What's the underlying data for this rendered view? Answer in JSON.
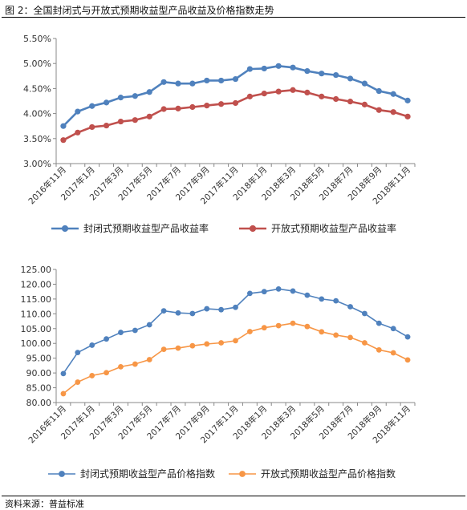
{
  "figure": {
    "title": "图 2：全国封闭式与开放式预期收益型产品收益及价格指数走势",
    "source": "资料来源：普益标准"
  },
  "chart_data": [
    {
      "type": "line",
      "categories": [
        "2016年11月",
        "2016年12月",
        "2017年1月",
        "2017年2月",
        "2017年3月",
        "2017年4月",
        "2017年5月",
        "2017年6月",
        "2017年7月",
        "2017年8月",
        "2017年9月",
        "2017年10月",
        "2017年11月",
        "2017年12月",
        "2018年1月",
        "2018年2月",
        "2018年3月",
        "2018年4月",
        "2018年5月",
        "2018年6月",
        "2018年7月",
        "2018年8月",
        "2018年9月",
        "2018年10月",
        "2018年11月"
      ],
      "x_tick_labels": [
        "2016年11月",
        "2017年1月",
        "2017年3月",
        "2017年5月",
        "2017年7月",
        "2017年9月",
        "2017年11月",
        "2018年1月",
        "2018年3月",
        "2018年5月",
        "2018年7月",
        "2018年9月",
        "2018年11月"
      ],
      "ylim": [
        3.0,
        5.5
      ],
      "yticks": [
        "3.00%",
        "3.50%",
        "4.00%",
        "4.50%",
        "5.00%",
        "5.50%"
      ],
      "grid": false,
      "legend": "bottom",
      "series": [
        {
          "name": "封闭式预期收益型产品收益率",
          "color": "#4f81bd",
          "values": [
            3.75,
            4.04,
            4.15,
            4.22,
            4.32,
            4.35,
            4.43,
            4.63,
            4.6,
            4.6,
            4.66,
            4.66,
            4.69,
            4.89,
            4.9,
            4.95,
            4.92,
            4.85,
            4.8,
            4.77,
            4.7,
            4.6,
            4.45,
            4.39,
            4.26
          ]
        },
        {
          "name": "开放式预期收益型产品收益率",
          "color": "#c0504d",
          "values": [
            3.47,
            3.62,
            3.73,
            3.76,
            3.84,
            3.87,
            3.94,
            4.09,
            4.1,
            4.13,
            4.16,
            4.19,
            4.21,
            4.34,
            4.4,
            4.44,
            4.47,
            4.42,
            4.34,
            4.29,
            4.24,
            4.18,
            4.07,
            4.03,
            3.94
          ]
        }
      ]
    },
    {
      "type": "line",
      "categories": [
        "2016年11月",
        "2016年12月",
        "2017年1月",
        "2017年2月",
        "2017年3月",
        "2017年4月",
        "2017年5月",
        "2017年6月",
        "2017年7月",
        "2017年8月",
        "2017年9月",
        "2017年10月",
        "2017年11月",
        "2017年12月",
        "2018年1月",
        "2018年2月",
        "2018年3月",
        "2018年4月",
        "2018年5月",
        "2018年6月",
        "2018年7月",
        "2018年8月",
        "2018年9月",
        "2018年10月",
        "2018年11月"
      ],
      "x_tick_labels": [
        "2016年11月",
        "2017年1月",
        "2017年3月",
        "2017年5月",
        "2017年7月",
        "2017年9月",
        "2017年11月",
        "2018年1月",
        "2018年3月",
        "2018年5月",
        "2018年7月",
        "2018年9月",
        "2018年11月"
      ],
      "ylim": [
        80,
        125
      ],
      "yticks": [
        "80.00",
        "85.00",
        "90.00",
        "95.00",
        "100.00",
        "105.00",
        "110.00",
        "115.00",
        "120.00",
        "125.00"
      ],
      "grid": false,
      "legend": "bottom",
      "series": [
        {
          "name": "封闭式预期收益型产品价格指数",
          "color": "#4f81bd",
          "values": [
            89.8,
            96.9,
            99.4,
            101.5,
            103.7,
            104.4,
            106.3,
            111.0,
            110.3,
            110.1,
            111.7,
            111.4,
            112.2,
            116.9,
            117.5,
            118.4,
            117.7,
            116.3,
            115.0,
            114.4,
            112.4,
            110.1,
            106.8,
            105.0,
            102.2
          ]
        },
        {
          "name": "开放式预期收益型产品价格指数",
          "color": "#f79646",
          "values": [
            83.0,
            86.9,
            89.1,
            90.1,
            92.1,
            93.0,
            94.5,
            98.0,
            98.4,
            99.2,
            99.8,
            100.2,
            100.9,
            104.0,
            105.3,
            106.0,
            106.8,
            105.7,
            103.9,
            102.8,
            102.0,
            100.2,
            97.8,
            96.8,
            94.4
          ]
        }
      ]
    }
  ]
}
